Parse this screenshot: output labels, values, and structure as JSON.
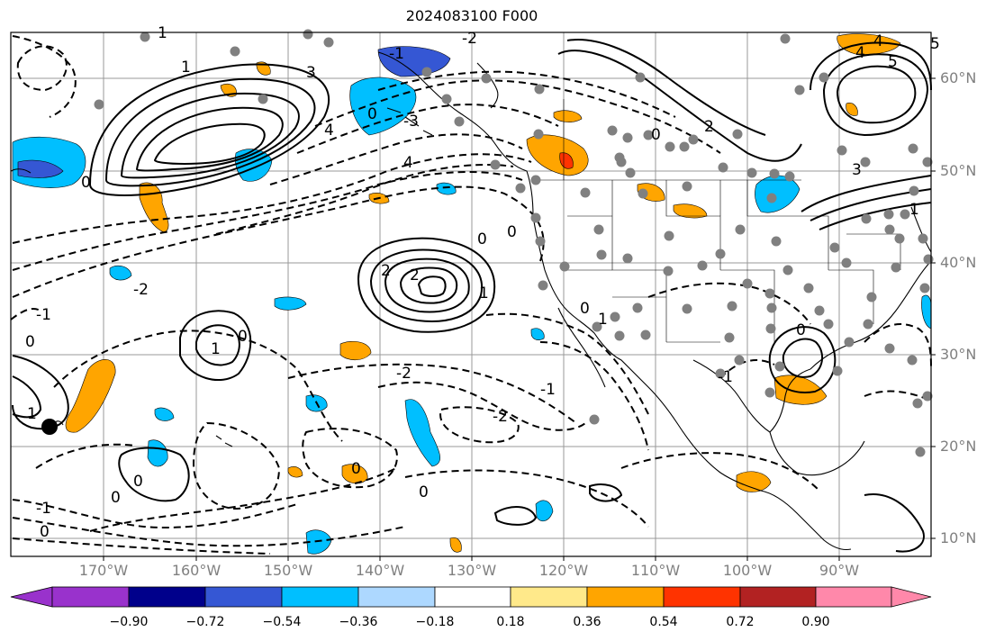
{
  "title": "2024083100 F000",
  "map": {
    "lon_ticks": [
      "170°W",
      "160°W",
      "150°W",
      "140°W",
      "130°W",
      "120°W",
      "110°W",
      "100°W",
      "90°W"
    ],
    "lat_ticks": [
      "60°N",
      "50°N",
      "40°N",
      "30°N",
      "20°N",
      "10°N"
    ],
    "contour_labels": [
      "1",
      "0",
      "-1",
      "-2",
      "-3",
      "4",
      "3",
      "5",
      "2"
    ]
  },
  "colorbar": {
    "colors": [
      "#9932cc",
      "#00008b",
      "#3557d4",
      "#00bfff",
      "#add8ff",
      "#ffffff",
      "#ffe98a",
      "#ffa500",
      "#ff3300",
      "#b22222",
      "#ff88aa",
      "#ff88aa"
    ],
    "tick_labels": [
      "−0.90",
      "−0.72",
      "−0.54",
      "−0.36",
      "−0.18",
      "0.18",
      "0.36",
      "0.54",
      "0.72",
      "0.90"
    ]
  }
}
